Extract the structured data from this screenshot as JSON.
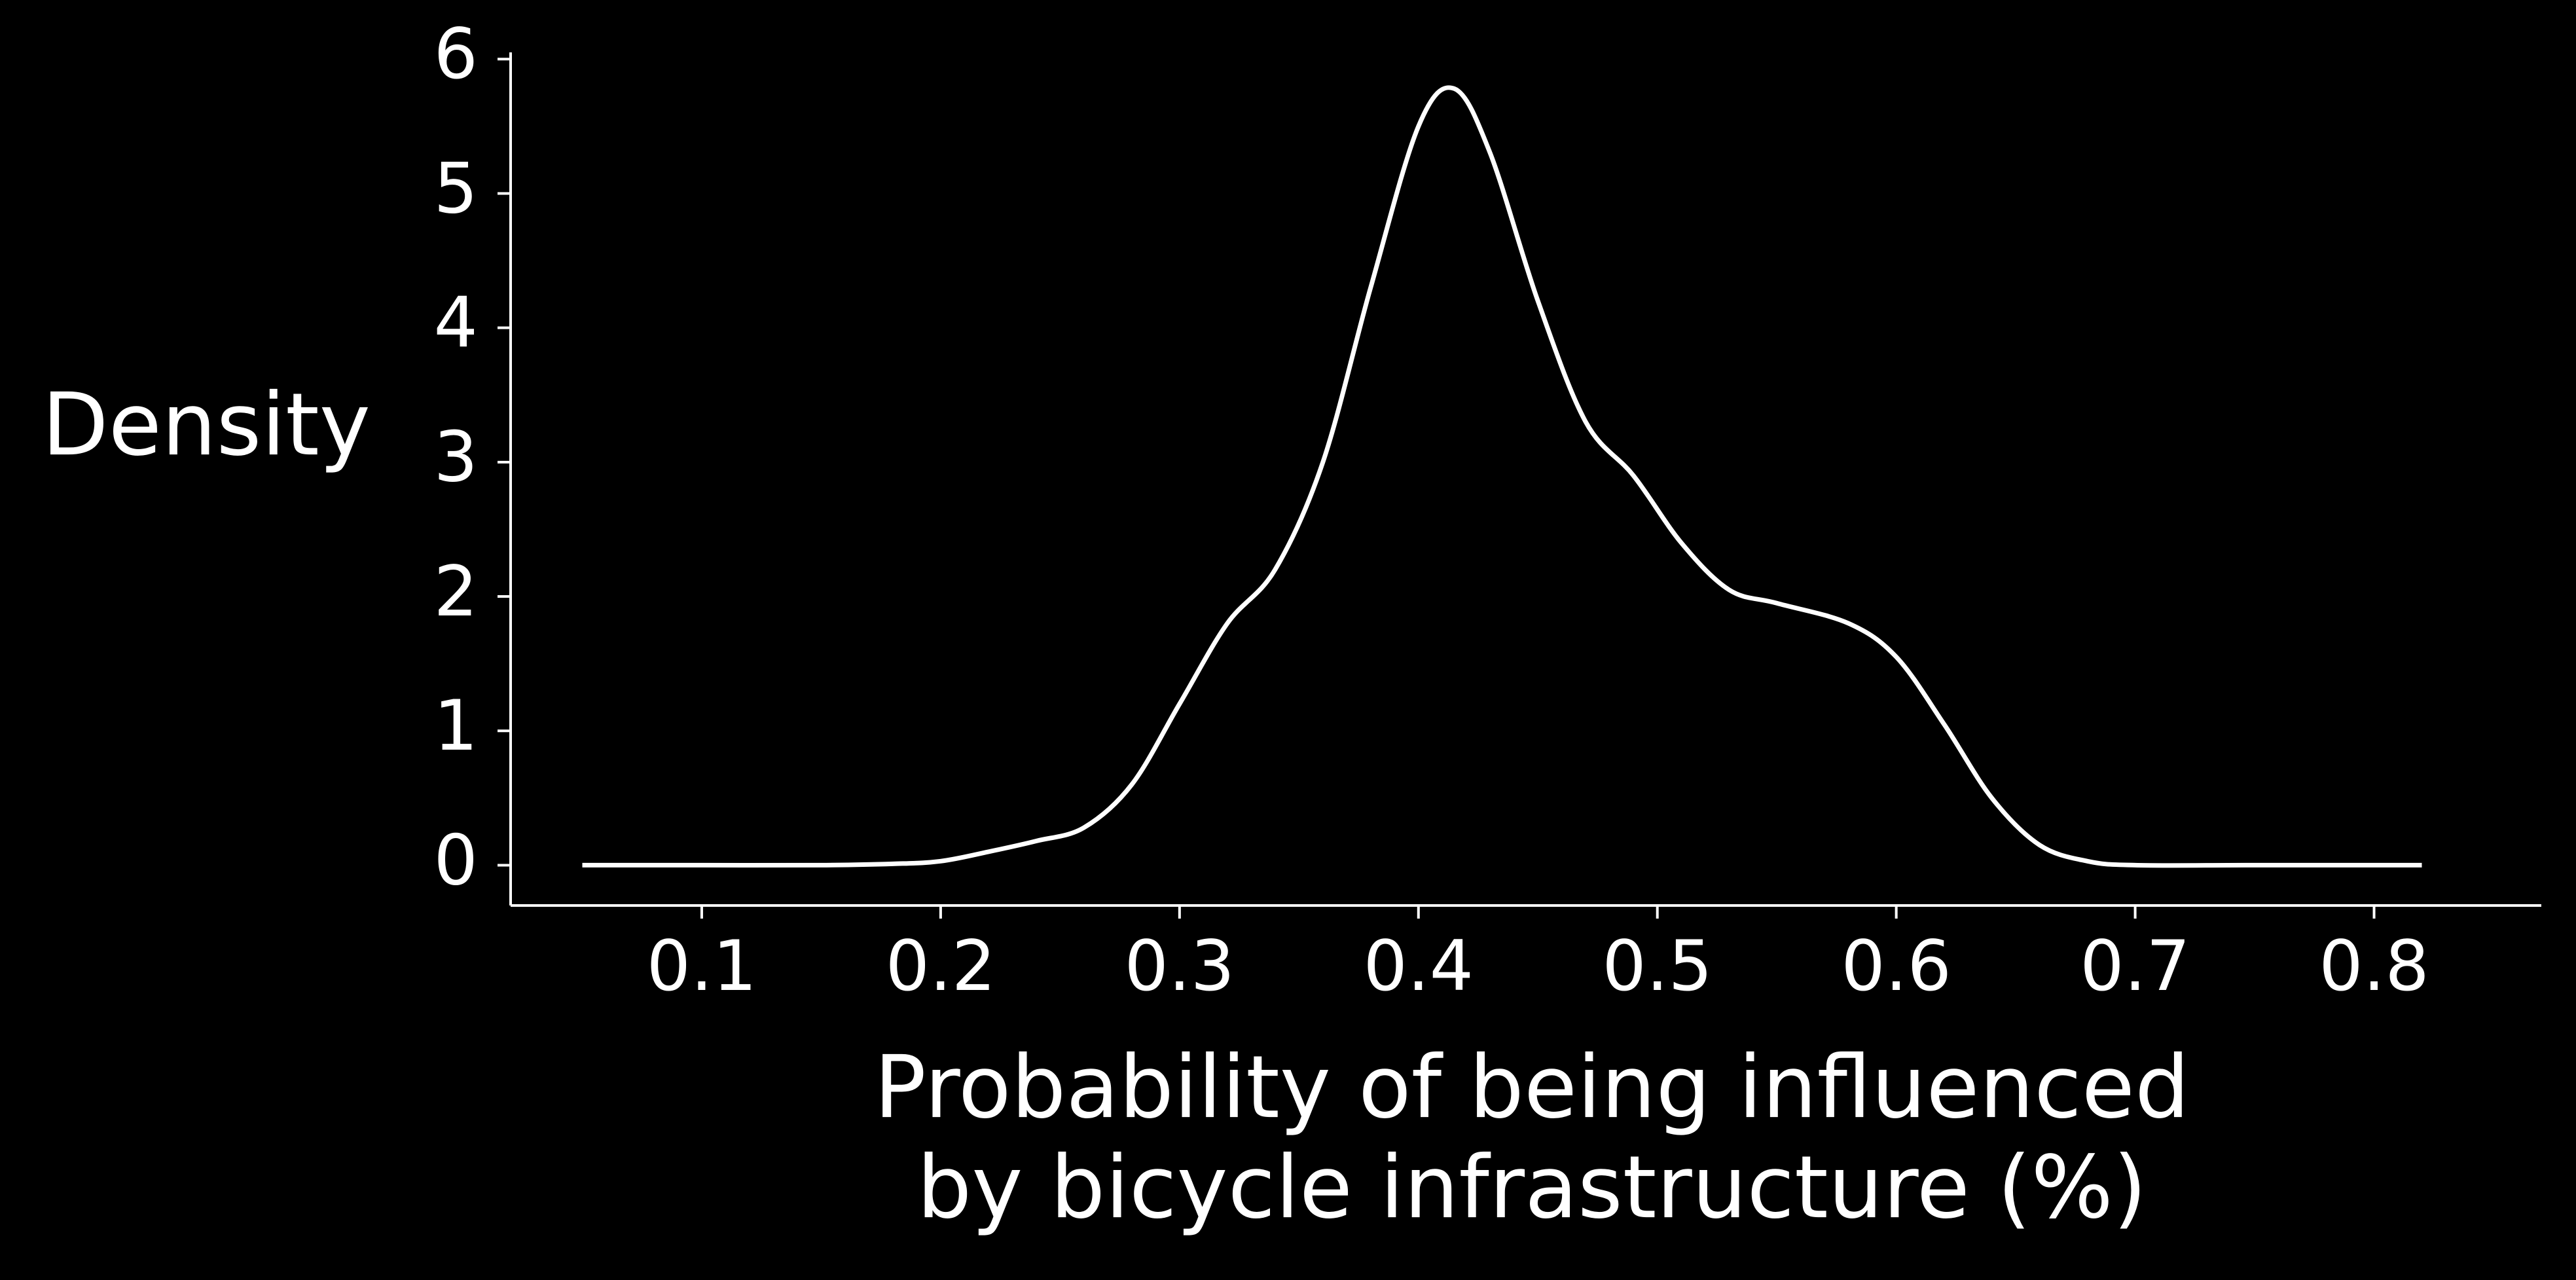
{
  "colors": {
    "background": "#000000",
    "foreground": "#ffffff"
  },
  "chart_data": {
    "type": "line",
    "title": "",
    "xlabel_lines": [
      "Probability of being influenced",
      "by bicycle infrastructure (%)"
    ],
    "ylabel": "Density",
    "xlim": [
      0.02,
      0.87
    ],
    "ylim": [
      -0.3,
      6.05
    ],
    "xticks": [
      0.1,
      0.2,
      0.3,
      0.4,
      0.5,
      0.6,
      0.7,
      0.8
    ],
    "xtick_labels": [
      "0.1",
      "0.2",
      "0.3",
      "0.4",
      "0.5",
      "0.6",
      "0.7",
      "0.8"
    ],
    "yticks": [
      0,
      1,
      2,
      3,
      4,
      5,
      6
    ],
    "ytick_labels": [
      "0",
      "1",
      "2",
      "3",
      "4",
      "5",
      "6"
    ],
    "grid": false,
    "series": [
      {
        "name": "density",
        "x": [
          0.05,
          0.1,
          0.15,
          0.18,
          0.2,
          0.22,
          0.24,
          0.26,
          0.28,
          0.3,
          0.32,
          0.34,
          0.36,
          0.38,
          0.4,
          0.415,
          0.43,
          0.45,
          0.47,
          0.49,
          0.51,
          0.53,
          0.55,
          0.58,
          0.6,
          0.62,
          0.64,
          0.66,
          0.68,
          0.7,
          0.75,
          0.82
        ],
        "y": [
          0.0,
          0.0,
          0.0,
          0.01,
          0.03,
          0.1,
          0.18,
          0.28,
          0.6,
          1.2,
          1.8,
          2.2,
          3.0,
          4.3,
          5.5,
          5.78,
          5.3,
          4.2,
          3.3,
          2.9,
          2.4,
          2.05,
          1.95,
          1.8,
          1.55,
          1.05,
          0.5,
          0.15,
          0.03,
          0.0,
          0.0,
          0.0
        ]
      }
    ]
  }
}
